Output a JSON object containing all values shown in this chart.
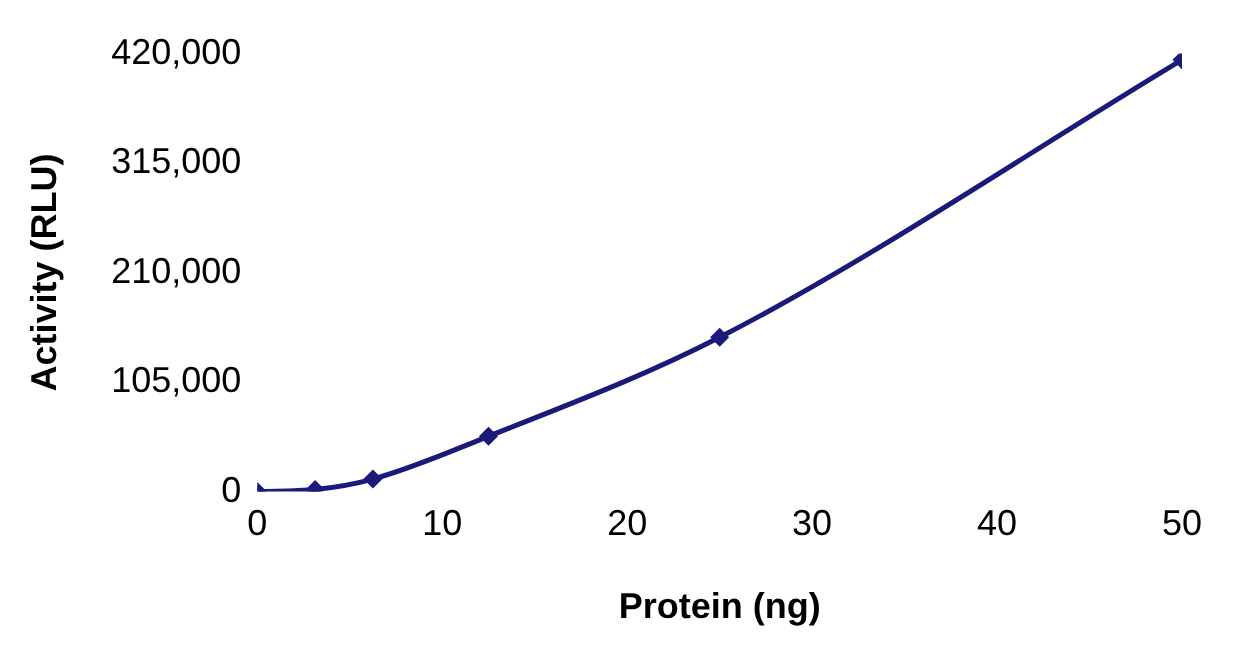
{
  "chart_data": {
    "type": "line",
    "xlabel": "Protein (ng)",
    "ylabel": "Activity (RLU)",
    "x": [
      0,
      3.125,
      6.25,
      12.5,
      25,
      50
    ],
    "series": [
      {
        "color": "#1a1a7a",
        "values": [
          0,
          2000,
          12000,
          53000,
          148000,
          414000
        ]
      }
    ],
    "xlim": [
      0,
      50
    ],
    "xticks": [
      0,
      10,
      20,
      30,
      40,
      50
    ],
    "ylim": [
      0,
      420000
    ],
    "yticks": [
      {
        "value": 0,
        "label": "0"
      },
      {
        "value": 105000,
        "label": "105,000"
      },
      {
        "value": 210000,
        "label": "210,000"
      },
      {
        "value": 315000,
        "label": "315,000"
      },
      {
        "value": 420000,
        "label": "420,000"
      }
    ],
    "grid": false,
    "legend": false,
    "marker": "diamond",
    "line_style": "solid"
  }
}
